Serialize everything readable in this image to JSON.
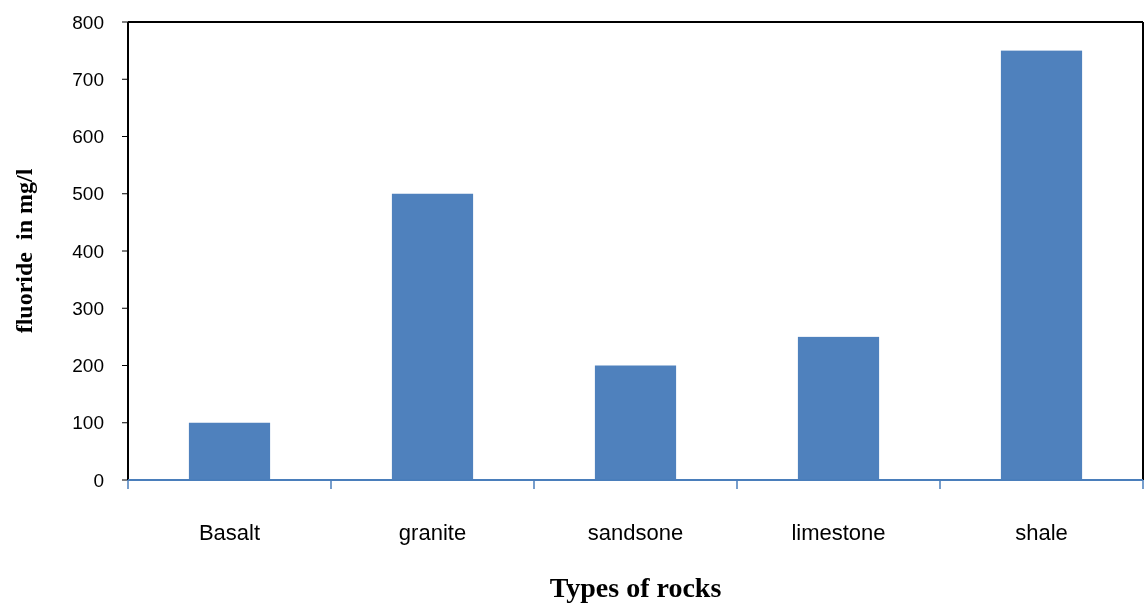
{
  "chart_data": {
    "type": "bar",
    "xlabel": "Types of rocks",
    "ylabel": "fluoride  in mg/l",
    "categories": [
      "Basalt",
      "granite",
      "sandsone",
      "limestone",
      "shale"
    ],
    "values": [
      100,
      500,
      200,
      250,
      750
    ],
    "color": "#4f81bd",
    "ylim": [
      0,
      800
    ],
    "yticks": [
      0,
      100,
      200,
      300,
      400,
      500,
      600,
      700,
      800
    ],
    "grid": false
  }
}
